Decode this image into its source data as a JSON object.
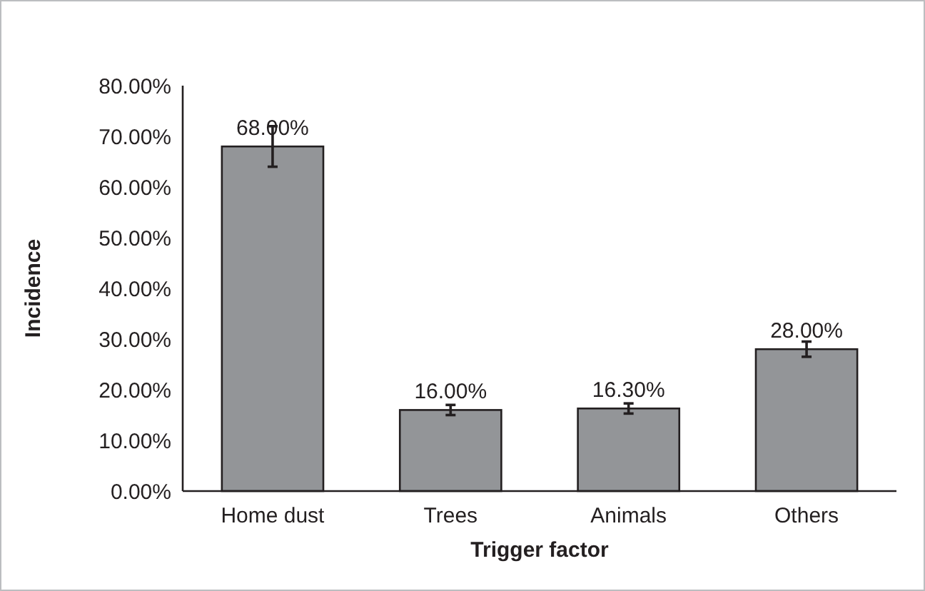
{
  "chart_data": {
    "type": "bar",
    "xlabel": "Trigger factor",
    "ylabel": "Incidence",
    "categories": [
      "Home dust",
      "Trees",
      "Animals",
      "Others"
    ],
    "values": [
      68,
      16,
      16.3,
      28
    ],
    "color": "#939598",
    "errors": [
      4,
      1,
      1,
      1.5
    ],
    "value_labels": [
      "68.00%",
      "16.00%",
      "16.30%",
      "28.00%"
    ],
    "ylim": [
      0,
      80
    ],
    "yticks": [
      {
        "value": 0,
        "label": "0.00%"
      },
      {
        "value": 10,
        "label": "10.00%"
      },
      {
        "value": 20,
        "label": "20.00%"
      },
      {
        "value": 30,
        "label": "30.00%"
      },
      {
        "value": 40,
        "label": "40.00%"
      },
      {
        "value": 50,
        "label": "50.00%"
      },
      {
        "value": 60,
        "label": "60.00%"
      },
      {
        "value": 70,
        "label": "70.00%"
      },
      {
        "value": 80,
        "label": "80.00%"
      }
    ],
    "grid": false
  }
}
